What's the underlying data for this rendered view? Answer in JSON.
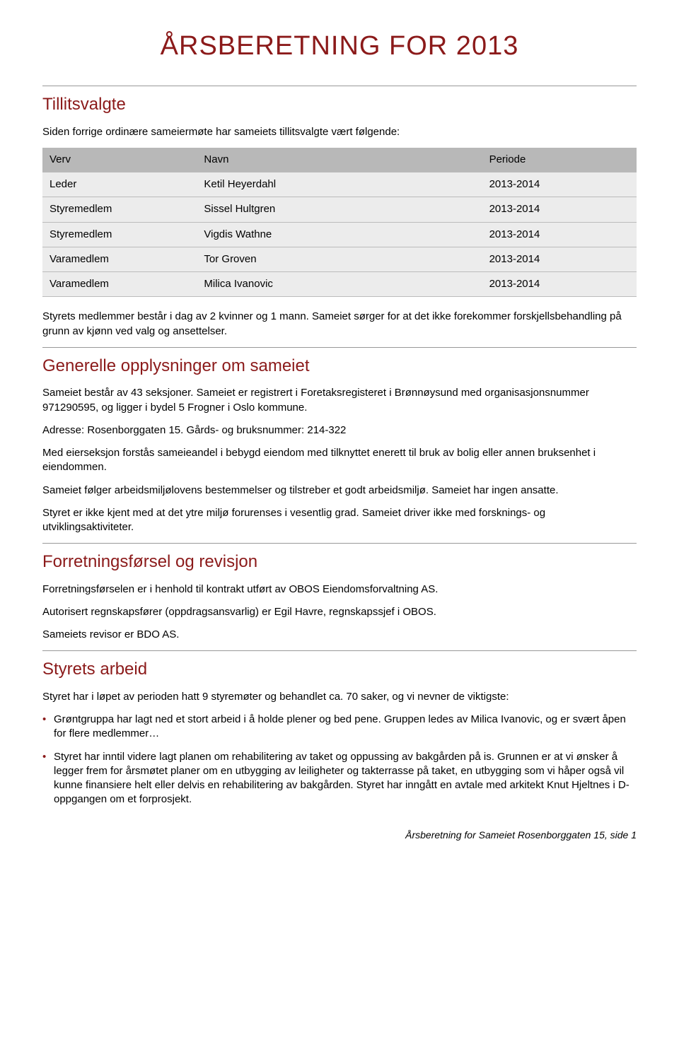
{
  "title": "ÅRSBERETNING FOR 2013",
  "colors": {
    "heading": "#8b1a1a",
    "bullet": "#8b1a1a",
    "divider": "#999999",
    "table_header_bg": "#b8b8b8",
    "table_row_bg": "#ececec",
    "table_border": "#bbbbbb",
    "body_text": "#000000",
    "background": "#ffffff"
  },
  "typography": {
    "title_size_pt": 28,
    "section_size_pt": 18,
    "body_size_pt": 11,
    "font_family": "Helvetica Neue",
    "title_weight": 300,
    "body_weight": 300
  },
  "sections": {
    "tillitsvalgte": {
      "heading": "Tillitsvalgte",
      "intro": "Siden forrige ordinære sameiermøte har sameiets tillitsvalgte vært følgende:",
      "table": {
        "columns": [
          "Verv",
          "Navn",
          "Periode"
        ],
        "col_widths_pct": [
          26,
          48,
          26
        ],
        "rows": [
          [
            "Leder",
            "Ketil Heyerdahl",
            "2013-2014"
          ],
          [
            "Styremedlem",
            "Sissel Hultgren",
            "2013-2014"
          ],
          [
            "Styremedlem",
            "Vigdis Wathne",
            "2013-2014"
          ],
          [
            "Varamedlem",
            "Tor Groven",
            "2013-2014"
          ],
          [
            "Varamedlem",
            "Milica Ivanovic",
            "2013-2014"
          ]
        ]
      },
      "after_table": "Styrets medlemmer består i dag av 2 kvinner og 1 mann. Sameiet sørger for at det ikke forekommer forskjellsbehandling på grunn av kjønn ved valg og ansettelser."
    },
    "generelle": {
      "heading": "Generelle opplysninger om sameiet",
      "paragraphs": [
        "Sameiet består av 43 seksjoner. Sameiet er registrert i Foretaksregisteret i Brønnøysund med organisasjonsnummer 971290595, og ligger i bydel 5 Frogner i Oslo kommune.",
        "Adresse: Rosenborggaten 15. Gårds- og bruksnummer: 214-322",
        "Med eierseksjon forstås sameieandel i bebygd eiendom med tilknyttet enerett til bruk av bolig eller annen bruksenhet i eiendommen.",
        "Sameiet følger arbeidsmiljølovens bestemmelser og tilstreber et godt arbeidsmiljø. Sameiet har ingen ansatte.",
        "Styret er ikke kjent med at det ytre miljø forurenses i vesentlig grad. Sameiet driver ikke med forsknings- og utviklingsaktiviteter."
      ]
    },
    "forretning": {
      "heading": "Forretningsførsel og revisjon",
      "paragraphs": [
        "Forretningsførselen er i henhold til kontrakt utført av OBOS Eiendomsforvaltning AS.",
        "Autorisert regnskapsfører (oppdragsansvarlig) er Egil Havre, regnskapssjef i OBOS.",
        "Sameiets revisor er BDO AS."
      ]
    },
    "arbeid": {
      "heading": "Styrets arbeid",
      "intro": "Styret har i løpet av perioden hatt 9 styremøter og behandlet ca. 70 saker, og vi nevner de viktigste:",
      "bullets": [
        "Grøntgruppa har lagt ned et stort arbeid i å holde plener og bed pene. Gruppen ledes av Milica Ivanovic, og er svært åpen for flere medlemmer…",
        "Styret har inntil videre lagt planen om rehabilitering av taket og oppussing av bakgården på is. Grunnen er at vi ønsker å legger frem for årsmøtet planer om en utbygging av leiligheter og takterrasse på taket, en utbygging som vi håper også vil kunne finansiere helt eller delvis en rehabilitering av bakgården. Styret har inngått en avtale med arkitekt Knut Hjeltnes i D-oppgangen om et forprosjekt."
      ]
    }
  },
  "footer": "Årsberetning for Sameiet Rosenborggaten 15, side 1"
}
